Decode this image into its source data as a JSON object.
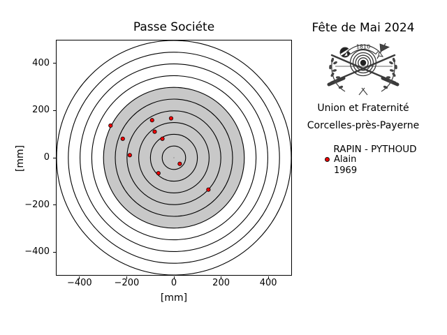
{
  "chart_data": {
    "type": "scatter",
    "title": "Passe Sociéte",
    "xlabel": "[mm]",
    "ylabel": "[mm]",
    "xlim": [
      -500,
      500
    ],
    "ylim": [
      -500,
      500
    ],
    "xticks": [
      -400,
      -200,
      0,
      200,
      400
    ],
    "xtick_labels": [
      "−400",
      "−200",
      "0",
      "200",
      "400"
    ],
    "yticks": [
      -400,
      -200,
      0,
      200,
      400
    ],
    "ytick_labels": [
      "−400",
      "−200",
      "0",
      "200",
      "400"
    ],
    "grid": false,
    "target_rings_mm": [
      50,
      100,
      150,
      200,
      250,
      300,
      350,
      400,
      450,
      500
    ],
    "aiming_disc_radius_mm": 300,
    "aiming_disc_color": "#c8c8c8",
    "ring_color": "#000000",
    "center_mark_color": "#aaaaaa",
    "shot_color": "#ee0000",
    "shot_edge_color": "#000000",
    "series": [
      {
        "name": "RAPIN - PYTHOUD / Alain / 1969",
        "points_mm": [
          [
            -270,
            137
          ],
          [
            -218,
            81
          ],
          [
            -188,
            11
          ],
          [
            -93,
            160
          ],
          [
            -82,
            111
          ],
          [
            -12,
            168
          ],
          [
            -49,
            81
          ],
          [
            25,
            -26
          ],
          [
            -66,
            -66
          ],
          [
            147,
            -136
          ]
        ]
      }
    ]
  },
  "header": {
    "event_title": "Fête de Mai 2024",
    "logo_year": "1810"
  },
  "club": {
    "motto": "Union et Fraternité",
    "location": "Corcelles-près-Payerne"
  },
  "legend": {
    "team": "RAPIN - PYTHOUD",
    "shooter_first_name": "Alain",
    "shooter_year": "1969",
    "marker_color": "#ee0000"
  }
}
